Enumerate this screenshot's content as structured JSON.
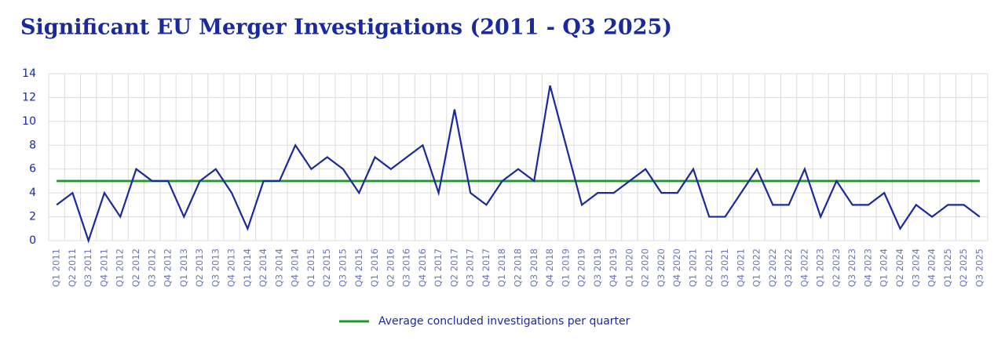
{
  "chart_data": {
    "type": "line",
    "title": "Significant EU Merger Investigations (2011 - Q3 2025)",
    "categories": [
      "Q1 2011",
      "Q2 2011",
      "Q3 2011",
      "Q4 2011",
      "Q1 2012",
      "Q2 2012",
      "Q3 2012",
      "Q4 2012",
      "Q1 2013",
      "Q2 2013",
      "Q3 2013",
      "Q4 2013",
      "Q1 2014",
      "Q2 2014",
      "Q3 2014",
      "Q4 2014",
      "Q1 2015",
      "Q2 2015",
      "Q3 2015",
      "Q4 2015",
      "Q1 2016",
      "Q2 2016",
      "Q3 2016",
      "Q4 2016",
      "Q1 2017",
      "Q2 2017",
      "Q3 2017",
      "Q4 2017",
      "Q1 2018",
      "Q2 2018",
      "Q3 2018",
      "Q4 2018",
      "Q1 2019",
      "Q2 2019",
      "Q3 2019",
      "Q4 2019",
      "Q1 2020",
      "Q2 2020",
      "Q3 2020",
      "Q4 2020",
      "Q1 2021",
      "Q2 2021",
      "Q3 2021",
      "Q4 2021",
      "Q1 2022",
      "Q2 2022",
      "Q3 2022",
      "Q4 2022",
      "Q1 2023",
      "Q2 2023",
      "Q3 2023",
      "Q4 2023",
      "Q1 2024",
      "Q2 2024",
      "Q3 2024",
      "Q4 2024",
      "Q1 2025",
      "Q2 2025",
      "Q3 2025"
    ],
    "series": [
      {
        "color": "#1a2a9c",
        "values": [
          3,
          4,
          0,
          4,
          2,
          6,
          5,
          5,
          2,
          5,
          6,
          4,
          1,
          5,
          5,
          8,
          6,
          7,
          6,
          4,
          7,
          6,
          7,
          8,
          4,
          11,
          4,
          3,
          5,
          6,
          5,
          13,
          8,
          3,
          4,
          4,
          5,
          6,
          4,
          4,
          6,
          2,
          2,
          4,
          6,
          3,
          3,
          6,
          2,
          5,
          3,
          3,
          4,
          1,
          3,
          2,
          3,
          3,
          2
        ]
      },
      {
        "name": "Average concluded investigations per quarter",
        "color": "#1f9a2a",
        "values": [
          5,
          5,
          5,
          5,
          5,
          5,
          5,
          5,
          5,
          5,
          5,
          5,
          5,
          5,
          5,
          5,
          5,
          5,
          5,
          5,
          5,
          5,
          5,
          5,
          5,
          5,
          5,
          5,
          5,
          5,
          5,
          5,
          5,
          5,
          5,
          5,
          5,
          5,
          5,
          5,
          5,
          5,
          5,
          5,
          5,
          5,
          5,
          5,
          5,
          5,
          5,
          5,
          5,
          5,
          5,
          5,
          5,
          5,
          5
        ]
      }
    ],
    "ylim": [
      0,
      14
    ],
    "yticks": [
      0,
      2,
      4,
      6,
      8,
      10,
      12,
      14
    ],
    "grid": true
  }
}
